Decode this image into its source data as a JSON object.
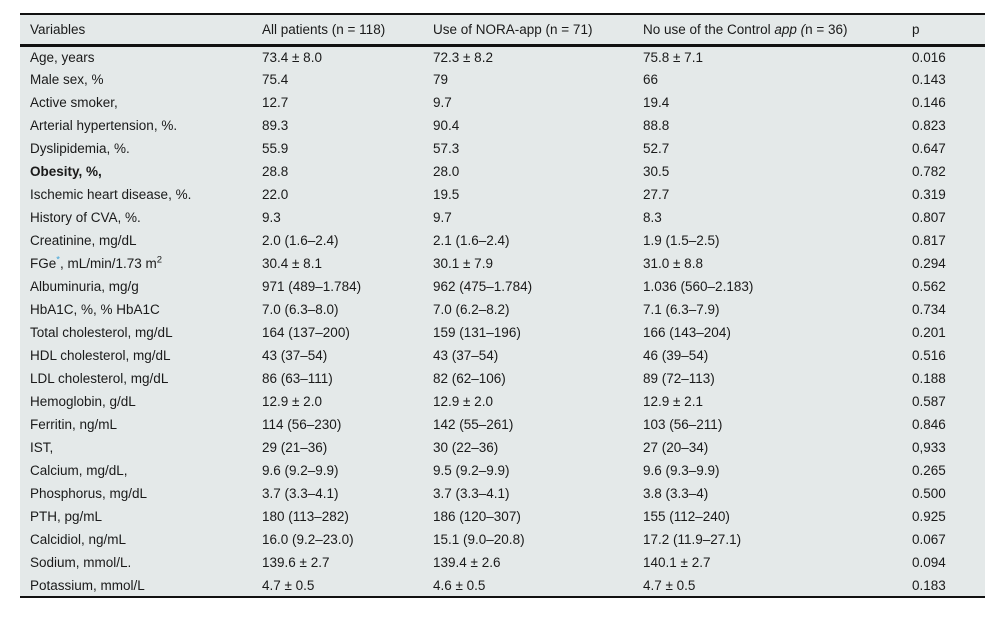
{
  "colors": {
    "table_bg": "#e4e9e9",
    "rule": "#111111",
    "text": "#1a1a1a",
    "accent": "#3fa3d7"
  },
  "table": {
    "columns": [
      {
        "label": "Variables"
      },
      {
        "label": "All patients (n = 118)"
      },
      {
        "label": "Use of NORA-app (n = 71)"
      },
      {
        "parts": [
          {
            "t": "No use of the Control "
          },
          {
            "t": "app (",
            "italic": true
          },
          {
            "t": "n = 36)"
          }
        ]
      },
      {
        "label": "p"
      }
    ],
    "rows": [
      {
        "label": "Age, years",
        "cells": [
          "73.4 ± 8.0",
          "72.3 ± 8.2",
          "75.8 ± 7.1",
          "0.016"
        ]
      },
      {
        "label": "Male sex, %",
        "cells": [
          "75.4",
          "79",
          "66",
          "0.143"
        ]
      },
      {
        "label": "Active smoker,",
        "cells": [
          "12.7",
          "9.7",
          "19.4",
          "0.146"
        ]
      },
      {
        "label": "Arterial hypertension, %.",
        "cells": [
          "89.3",
          "90.4",
          "88.8",
          "0.823"
        ]
      },
      {
        "label": "Dyslipidemia, %.",
        "cells": [
          "55.9",
          "57.3",
          "52.7",
          "0.647"
        ]
      },
      {
        "label": "Obesity, %,",
        "bold": true,
        "cells": [
          "28.8",
          "28.0",
          "30.5",
          "0.782"
        ]
      },
      {
        "label": "Ischemic heart disease, %.",
        "cells": [
          "22.0",
          "19.5",
          "27.7",
          "0.319"
        ]
      },
      {
        "label": "History of CVA, %.",
        "cells": [
          "9.3",
          "9.7",
          "8.3",
          "0.807"
        ]
      },
      {
        "label": "Creatinine, mg/dL",
        "cells": [
          "2.0 (1.6–2.4)",
          "2.1 (1.6–2.4)",
          "1.9 (1.5–2.5)",
          "0.817"
        ]
      },
      {
        "label_parts": [
          {
            "t": "FGe"
          },
          {
            "t": "*",
            "sup": true,
            "accent": true
          },
          {
            "t": ", mL/min/1.73 m"
          },
          {
            "t": "2",
            "sup": true
          }
        ],
        "cells": [
          "30.4 ± 8.1",
          "30.1 ± 7.9",
          "31.0 ± 8.8",
          "0.294"
        ]
      },
      {
        "label": "Albuminuria, mg/g",
        "cells": [
          "971 (489–1.784)",
          "962 (475–1.784)",
          "1.036 (560–2.183)",
          "0.562"
        ]
      },
      {
        "label": "HbA1C, %, % HbA1C",
        "cells": [
          "7.0 (6.3–8.0)",
          "7.0 (6.2–8.2)",
          "7.1 (6.3–7.9)",
          "0.734"
        ]
      },
      {
        "label": "Total cholesterol, mg/dL",
        "cells": [
          "164 (137–200)",
          "159 (131–196)",
          "166 (143–204)",
          "0.201"
        ]
      },
      {
        "label": "HDL cholesterol, mg/dL",
        "cells": [
          "43 (37–54)",
          "43 (37–54)",
          "46 (39–54)",
          "0.516"
        ]
      },
      {
        "label": "LDL cholesterol, mg/dL",
        "cells": [
          "86 (63–111)",
          "82 (62–106)",
          "89 (72–113)",
          "0.188"
        ]
      },
      {
        "label": "Hemoglobin, g/dL",
        "cells": [
          "12.9 ± 2.0",
          "12.9 ± 2.0",
          "12.9 ± 2.1",
          "0.587"
        ]
      },
      {
        "label": "Ferritin, ng/mL",
        "cells": [
          "114 (56–230)",
          "142 (55–261)",
          "103 (56–211)",
          "0.846"
        ]
      },
      {
        "label": "IST,",
        "cells": [
          "29 (21–36)",
          "30 (22–36)",
          "27 (20–34)",
          "0,933"
        ]
      },
      {
        "label": "Calcium, mg/dL,",
        "cells": [
          "9.6 (9.2–9.9)",
          "9.5 (9.2–9.9)",
          "9.6 (9.3–9.9)",
          "0.265"
        ]
      },
      {
        "label": "Phosphorus, mg/dL",
        "cells": [
          "3.7 (3.3–4.1)",
          "3.7 (3.3–4.1)",
          "3.8 (3.3–4)",
          "0.500"
        ]
      },
      {
        "label": "PTH, pg/mL",
        "cells": [
          "180 (113–282)",
          "186 (120–307)",
          "155 (112–240)",
          "0.925"
        ]
      },
      {
        "label": "Calcidiol, ng/mL",
        "cells": [
          "16.0 (9.2–23.0)",
          "15.1 (9.0–20.8)",
          "17.2 (11.9–27.1)",
          "0.067"
        ]
      },
      {
        "label": "Sodium, mmol/L.",
        "cells": [
          "139.6 ± 2.7",
          "139.4 ± 2.6",
          "140.1 ± 2.7",
          "0.094"
        ]
      },
      {
        "label": "Potassium, mmol/L",
        "cells": [
          "4.7 ± 0.5",
          "4.6 ± 0.5",
          "4.7 ± 0.5",
          "0.183"
        ]
      }
    ]
  }
}
